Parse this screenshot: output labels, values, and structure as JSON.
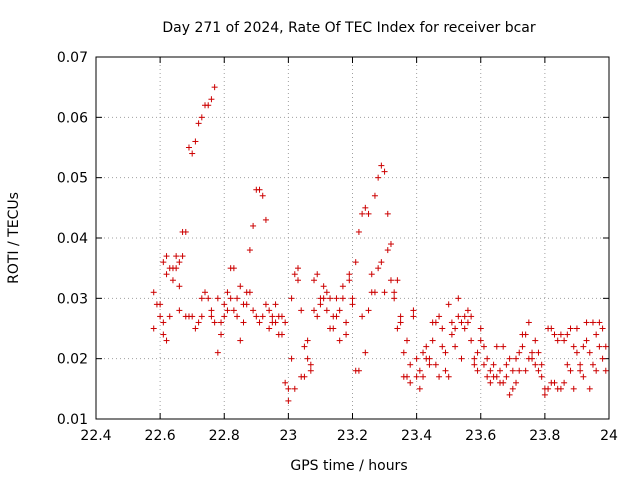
{
  "chart_data": {
    "type": "scatter",
    "title": "Day 271 of 2024, Rate Of TEC Index for receiver bcar",
    "xlabel": "GPS time / hours",
    "ylabel": "ROTI / TECUs",
    "xlim": [
      22.4,
      24
    ],
    "ylim": [
      0.01,
      0.07
    ],
    "xticks": [
      "22.4",
      "22.6",
      "22.8",
      "23",
      "23.2",
      "23.4",
      "23.6",
      "23.8",
      "24"
    ],
    "yticks": [
      "0.01",
      "0.02",
      "0.03",
      "0.04",
      "0.05",
      "0.06",
      "0.07"
    ],
    "grid": true,
    "marker": "+",
    "color": "#cc0000",
    "series": [
      {
        "name": "bcar",
        "points": [
          [
            22.58,
            0.031
          ],
          [
            22.58,
            0.025
          ],
          [
            22.59,
            0.029
          ],
          [
            22.6,
            0.027
          ],
          [
            22.6,
            0.029
          ],
          [
            22.61,
            0.024
          ],
          [
            22.61,
            0.026
          ],
          [
            22.61,
            0.036
          ],
          [
            22.62,
            0.037
          ],
          [
            22.62,
            0.034
          ],
          [
            22.62,
            0.023
          ],
          [
            22.63,
            0.027
          ],
          [
            22.63,
            0.035
          ],
          [
            22.64,
            0.035
          ],
          [
            22.64,
            0.033
          ],
          [
            22.65,
            0.035
          ],
          [
            22.65,
            0.037
          ],
          [
            22.66,
            0.036
          ],
          [
            22.66,
            0.032
          ],
          [
            22.66,
            0.028
          ],
          [
            22.67,
            0.037
          ],
          [
            22.67,
            0.041
          ],
          [
            22.68,
            0.041
          ],
          [
            22.68,
            0.027
          ],
          [
            22.69,
            0.055
          ],
          [
            22.69,
            0.027
          ],
          [
            22.7,
            0.054
          ],
          [
            22.7,
            0.027
          ],
          [
            22.71,
            0.056
          ],
          [
            22.71,
            0.025
          ],
          [
            22.72,
            0.059
          ],
          [
            22.72,
            0.026
          ],
          [
            22.73,
            0.06
          ],
          [
            22.73,
            0.03
          ],
          [
            22.73,
            0.027
          ],
          [
            22.74,
            0.062
          ],
          [
            22.74,
            0.031
          ],
          [
            22.75,
            0.062
          ],
          [
            22.75,
            0.03
          ],
          [
            22.76,
            0.063
          ],
          [
            22.76,
            0.028
          ],
          [
            22.76,
            0.027
          ],
          [
            22.77,
            0.065
          ],
          [
            22.77,
            0.026
          ],
          [
            22.78,
            0.03
          ],
          [
            22.78,
            0.021
          ],
          [
            22.79,
            0.024
          ],
          [
            22.79,
            0.026
          ],
          [
            22.8,
            0.027
          ],
          [
            22.8,
            0.029
          ],
          [
            22.81,
            0.031
          ],
          [
            22.81,
            0.028
          ],
          [
            22.82,
            0.035
          ],
          [
            22.82,
            0.03
          ],
          [
            22.83,
            0.035
          ],
          [
            22.83,
            0.028
          ],
          [
            22.84,
            0.027
          ],
          [
            22.84,
            0.03
          ],
          [
            22.85,
            0.023
          ],
          [
            22.85,
            0.032
          ],
          [
            22.86,
            0.029
          ],
          [
            22.86,
            0.026
          ],
          [
            22.87,
            0.031
          ],
          [
            22.87,
            0.029
          ],
          [
            22.88,
            0.038
          ],
          [
            22.88,
            0.031
          ],
          [
            22.89,
            0.042
          ],
          [
            22.89,
            0.028
          ],
          [
            22.9,
            0.048
          ],
          [
            22.9,
            0.027
          ],
          [
            22.91,
            0.048
          ],
          [
            22.91,
            0.026
          ],
          [
            22.92,
            0.047
          ],
          [
            22.92,
            0.027
          ],
          [
            22.93,
            0.043
          ],
          [
            22.93,
            0.029
          ],
          [
            22.94,
            0.025
          ],
          [
            22.94,
            0.028
          ],
          [
            22.95,
            0.027
          ],
          [
            22.95,
            0.026
          ],
          [
            22.96,
            0.029
          ],
          [
            22.96,
            0.026
          ],
          [
            22.97,
            0.027
          ],
          [
            22.97,
            0.024
          ],
          [
            22.98,
            0.027
          ],
          [
            22.98,
            0.024
          ],
          [
            22.99,
            0.026
          ],
          [
            22.99,
            0.016
          ],
          [
            23.0,
            0.015
          ],
          [
            23.0,
            0.013
          ],
          [
            23.01,
            0.03
          ],
          [
            23.01,
            0.02
          ],
          [
            23.02,
            0.034
          ],
          [
            23.02,
            0.015
          ],
          [
            23.03,
            0.035
          ],
          [
            23.03,
            0.033
          ],
          [
            23.04,
            0.017
          ],
          [
            23.04,
            0.028
          ],
          [
            23.05,
            0.022
          ],
          [
            23.05,
            0.017
          ],
          [
            23.06,
            0.023
          ],
          [
            23.06,
            0.02
          ],
          [
            23.07,
            0.018
          ],
          [
            23.07,
            0.019
          ],
          [
            23.08,
            0.028
          ],
          [
            23.08,
            0.033
          ],
          [
            23.09,
            0.034
          ],
          [
            23.09,
            0.027
          ],
          [
            23.1,
            0.03
          ],
          [
            23.1,
            0.029
          ],
          [
            23.11,
            0.032
          ],
          [
            23.11,
            0.03
          ],
          [
            23.12,
            0.031
          ],
          [
            23.12,
            0.028
          ],
          [
            23.13,
            0.03
          ],
          [
            23.13,
            0.025
          ],
          [
            23.14,
            0.027
          ],
          [
            23.14,
            0.025
          ],
          [
            23.15,
            0.027
          ],
          [
            23.15,
            0.03
          ],
          [
            23.16,
            0.028
          ],
          [
            23.16,
            0.023
          ],
          [
            23.17,
            0.03
          ],
          [
            23.17,
            0.032
          ],
          [
            23.18,
            0.024
          ],
          [
            23.18,
            0.026
          ],
          [
            23.19,
            0.033
          ],
          [
            23.19,
            0.034
          ],
          [
            23.2,
            0.029
          ],
          [
            23.2,
            0.03
          ],
          [
            23.21,
            0.036
          ],
          [
            23.21,
            0.018
          ],
          [
            23.22,
            0.041
          ],
          [
            23.22,
            0.018
          ],
          [
            23.23,
            0.044
          ],
          [
            23.23,
            0.027
          ],
          [
            23.24,
            0.045
          ],
          [
            23.24,
            0.021
          ],
          [
            23.25,
            0.044
          ],
          [
            23.25,
            0.028
          ],
          [
            23.26,
            0.031
          ],
          [
            23.26,
            0.034
          ],
          [
            23.27,
            0.047
          ],
          [
            23.27,
            0.031
          ],
          [
            23.28,
            0.05
          ],
          [
            23.28,
            0.035
          ],
          [
            23.29,
            0.052
          ],
          [
            23.29,
            0.036
          ],
          [
            23.3,
            0.051
          ],
          [
            23.3,
            0.031
          ],
          [
            23.31,
            0.044
          ],
          [
            23.31,
            0.038
          ],
          [
            23.32,
            0.039
          ],
          [
            23.32,
            0.033
          ],
          [
            23.33,
            0.031
          ],
          [
            23.33,
            0.03
          ],
          [
            23.34,
            0.033
          ],
          [
            23.34,
            0.025
          ],
          [
            23.35,
            0.027
          ],
          [
            23.35,
            0.026
          ],
          [
            23.36,
            0.017
          ],
          [
            23.36,
            0.021
          ],
          [
            23.37,
            0.017
          ],
          [
            23.37,
            0.023
          ],
          [
            23.38,
            0.016
          ],
          [
            23.38,
            0.019
          ],
          [
            23.39,
            0.028
          ],
          [
            23.39,
            0.027
          ],
          [
            23.4,
            0.017
          ],
          [
            23.4,
            0.02
          ],
          [
            23.41,
            0.015
          ],
          [
            23.41,
            0.018
          ],
          [
            23.42,
            0.017
          ],
          [
            23.42,
            0.021
          ],
          [
            23.43,
            0.022
          ],
          [
            23.43,
            0.02
          ],
          [
            23.44,
            0.019
          ],
          [
            23.44,
            0.02
          ],
          [
            23.45,
            0.026
          ],
          [
            23.45,
            0.023
          ],
          [
            23.46,
            0.026
          ],
          [
            23.46,
            0.019
          ],
          [
            23.47,
            0.017
          ],
          [
            23.47,
            0.027
          ],
          [
            23.48,
            0.022
          ],
          [
            23.48,
            0.025
          ],
          [
            23.49,
            0.018
          ],
          [
            23.49,
            0.021
          ],
          [
            23.5,
            0.017
          ],
          [
            23.5,
            0.029
          ],
          [
            23.51,
            0.026
          ],
          [
            23.51,
            0.024
          ],
          [
            23.52,
            0.025
          ],
          [
            23.52,
            0.022
          ],
          [
            23.53,
            0.03
          ],
          [
            23.53,
            0.027
          ],
          [
            23.54,
            0.026
          ],
          [
            23.54,
            0.02
          ],
          [
            23.55,
            0.027
          ],
          [
            23.55,
            0.025
          ],
          [
            23.56,
            0.028
          ],
          [
            23.56,
            0.026
          ],
          [
            23.57,
            0.027
          ],
          [
            23.57,
            0.023
          ],
          [
            23.58,
            0.019
          ],
          [
            23.58,
            0.02
          ],
          [
            23.59,
            0.018
          ],
          [
            23.59,
            0.021
          ],
          [
            23.6,
            0.023
          ],
          [
            23.6,
            0.025
          ],
          [
            23.61,
            0.022
          ],
          [
            23.61,
            0.019
          ],
          [
            23.62,
            0.02
          ],
          [
            23.62,
            0.017
          ],
          [
            23.63,
            0.018
          ],
          [
            23.63,
            0.016
          ],
          [
            23.64,
            0.017
          ],
          [
            23.64,
            0.019
          ],
          [
            23.65,
            0.017
          ],
          [
            23.65,
            0.022
          ],
          [
            23.66,
            0.018
          ],
          [
            23.66,
            0.016
          ],
          [
            23.67,
            0.016
          ],
          [
            23.67,
            0.022
          ],
          [
            23.68,
            0.019
          ],
          [
            23.68,
            0.017
          ],
          [
            23.69,
            0.014
          ],
          [
            23.69,
            0.02
          ],
          [
            23.7,
            0.015
          ],
          [
            23.7,
            0.018
          ],
          [
            23.71,
            0.016
          ],
          [
            23.71,
            0.02
          ],
          [
            23.72,
            0.018
          ],
          [
            23.72,
            0.021
          ],
          [
            23.73,
            0.022
          ],
          [
            23.73,
            0.024
          ],
          [
            23.74,
            0.024
          ],
          [
            23.74,
            0.018
          ],
          [
            23.75,
            0.026
          ],
          [
            23.75,
            0.02
          ],
          [
            23.76,
            0.02
          ],
          [
            23.76,
            0.021
          ],
          [
            23.77,
            0.019
          ],
          [
            23.77,
            0.023
          ],
          [
            23.78,
            0.018
          ],
          [
            23.78,
            0.021
          ],
          [
            23.79,
            0.017
          ],
          [
            23.79,
            0.019
          ],
          [
            23.8,
            0.014
          ],
          [
            23.8,
            0.015
          ],
          [
            23.81,
            0.015
          ],
          [
            23.81,
            0.025
          ],
          [
            23.82,
            0.016
          ],
          [
            23.82,
            0.025
          ],
          [
            23.83,
            0.016
          ],
          [
            23.83,
            0.024
          ],
          [
            23.84,
            0.015
          ],
          [
            23.84,
            0.023
          ],
          [
            23.85,
            0.024
          ],
          [
            23.85,
            0.015
          ],
          [
            23.86,
            0.023
          ],
          [
            23.86,
            0.016
          ],
          [
            23.87,
            0.024
          ],
          [
            23.87,
            0.019
          ],
          [
            23.88,
            0.025
          ],
          [
            23.88,
            0.018
          ],
          [
            23.89,
            0.015
          ],
          [
            23.89,
            0.022
          ],
          [
            23.9,
            0.025
          ],
          [
            23.9,
            0.021
          ],
          [
            23.91,
            0.018
          ],
          [
            23.91,
            0.019
          ],
          [
            23.92,
            0.022
          ],
          [
            23.92,
            0.017
          ],
          [
            23.93,
            0.026
          ],
          [
            23.93,
            0.023
          ],
          [
            23.94,
            0.015
          ],
          [
            23.94,
            0.021
          ],
          [
            23.95,
            0.026
          ],
          [
            23.95,
            0.019
          ],
          [
            23.96,
            0.024
          ],
          [
            23.96,
            0.018
          ],
          [
            23.97,
            0.022
          ],
          [
            23.97,
            0.026
          ],
          [
            23.98,
            0.025
          ],
          [
            23.98,
            0.02
          ],
          [
            23.99,
            0.018
          ],
          [
            23.99,
            0.022
          ]
        ]
      }
    ]
  }
}
